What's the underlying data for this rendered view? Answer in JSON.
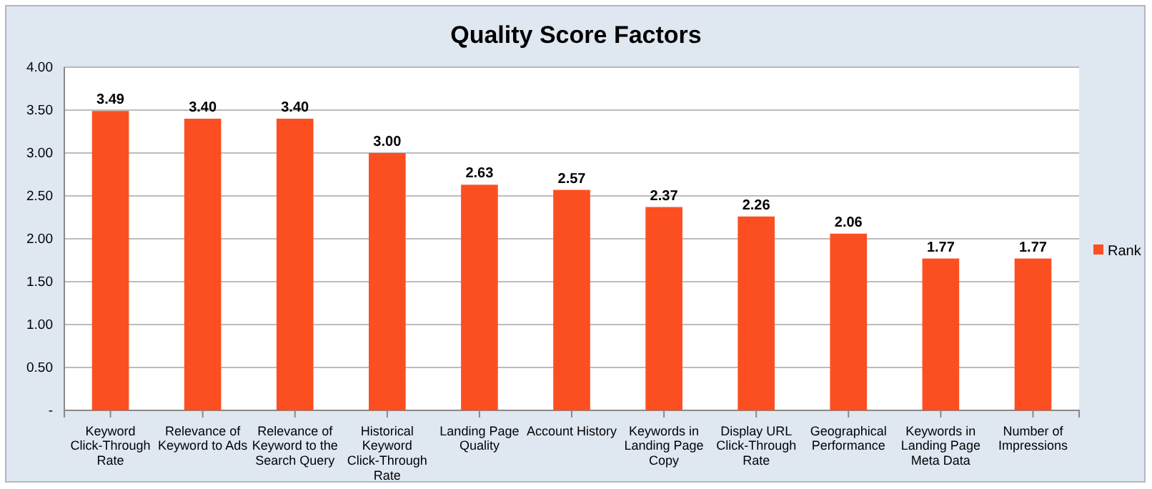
{
  "chart_data": {
    "type": "bar",
    "title": "Quality Score Factors",
    "categories": [
      "Keyword Click-Through Rate",
      "Relevance of Keyword to Ads",
      "Relevance of Keyword to the Search Query",
      "Historical Keyword Click-Through Rate",
      "Landing Page Quality",
      "Account History",
      "Keywords in Landing Page Copy",
      "Display URL Click-Through Rate",
      "Geographical Performance",
      "Keywords in Landing Page Meta Data",
      "Number of Impressions"
    ],
    "series": [
      {
        "name": "Rank",
        "color": "#fc4f21",
        "values": [
          3.49,
          3.4,
          3.4,
          3.0,
          2.63,
          2.57,
          2.37,
          2.26,
          2.06,
          1.77,
          1.77
        ],
        "value_labels": [
          "3.49",
          "3.40",
          "3.40",
          "3.00",
          "2.63",
          "2.57",
          "2.37",
          "2.26",
          "2.06",
          "1.77",
          "1.77"
        ]
      }
    ],
    "ylim": [
      0,
      4
    ],
    "yticks": [
      {
        "value": 0,
        "label": "-"
      },
      {
        "value": 0.5,
        "label": "0.50"
      },
      {
        "value": 1,
        "label": "1.00"
      },
      {
        "value": 1.5,
        "label": "1.50"
      },
      {
        "value": 2,
        "label": "2.00"
      },
      {
        "value": 2.5,
        "label": "2.50"
      },
      {
        "value": 3,
        "label": "3.00"
      },
      {
        "value": 3.5,
        "label": "3.50"
      },
      {
        "value": 4,
        "label": "4.00"
      }
    ],
    "grid": "y",
    "legend": "right"
  }
}
